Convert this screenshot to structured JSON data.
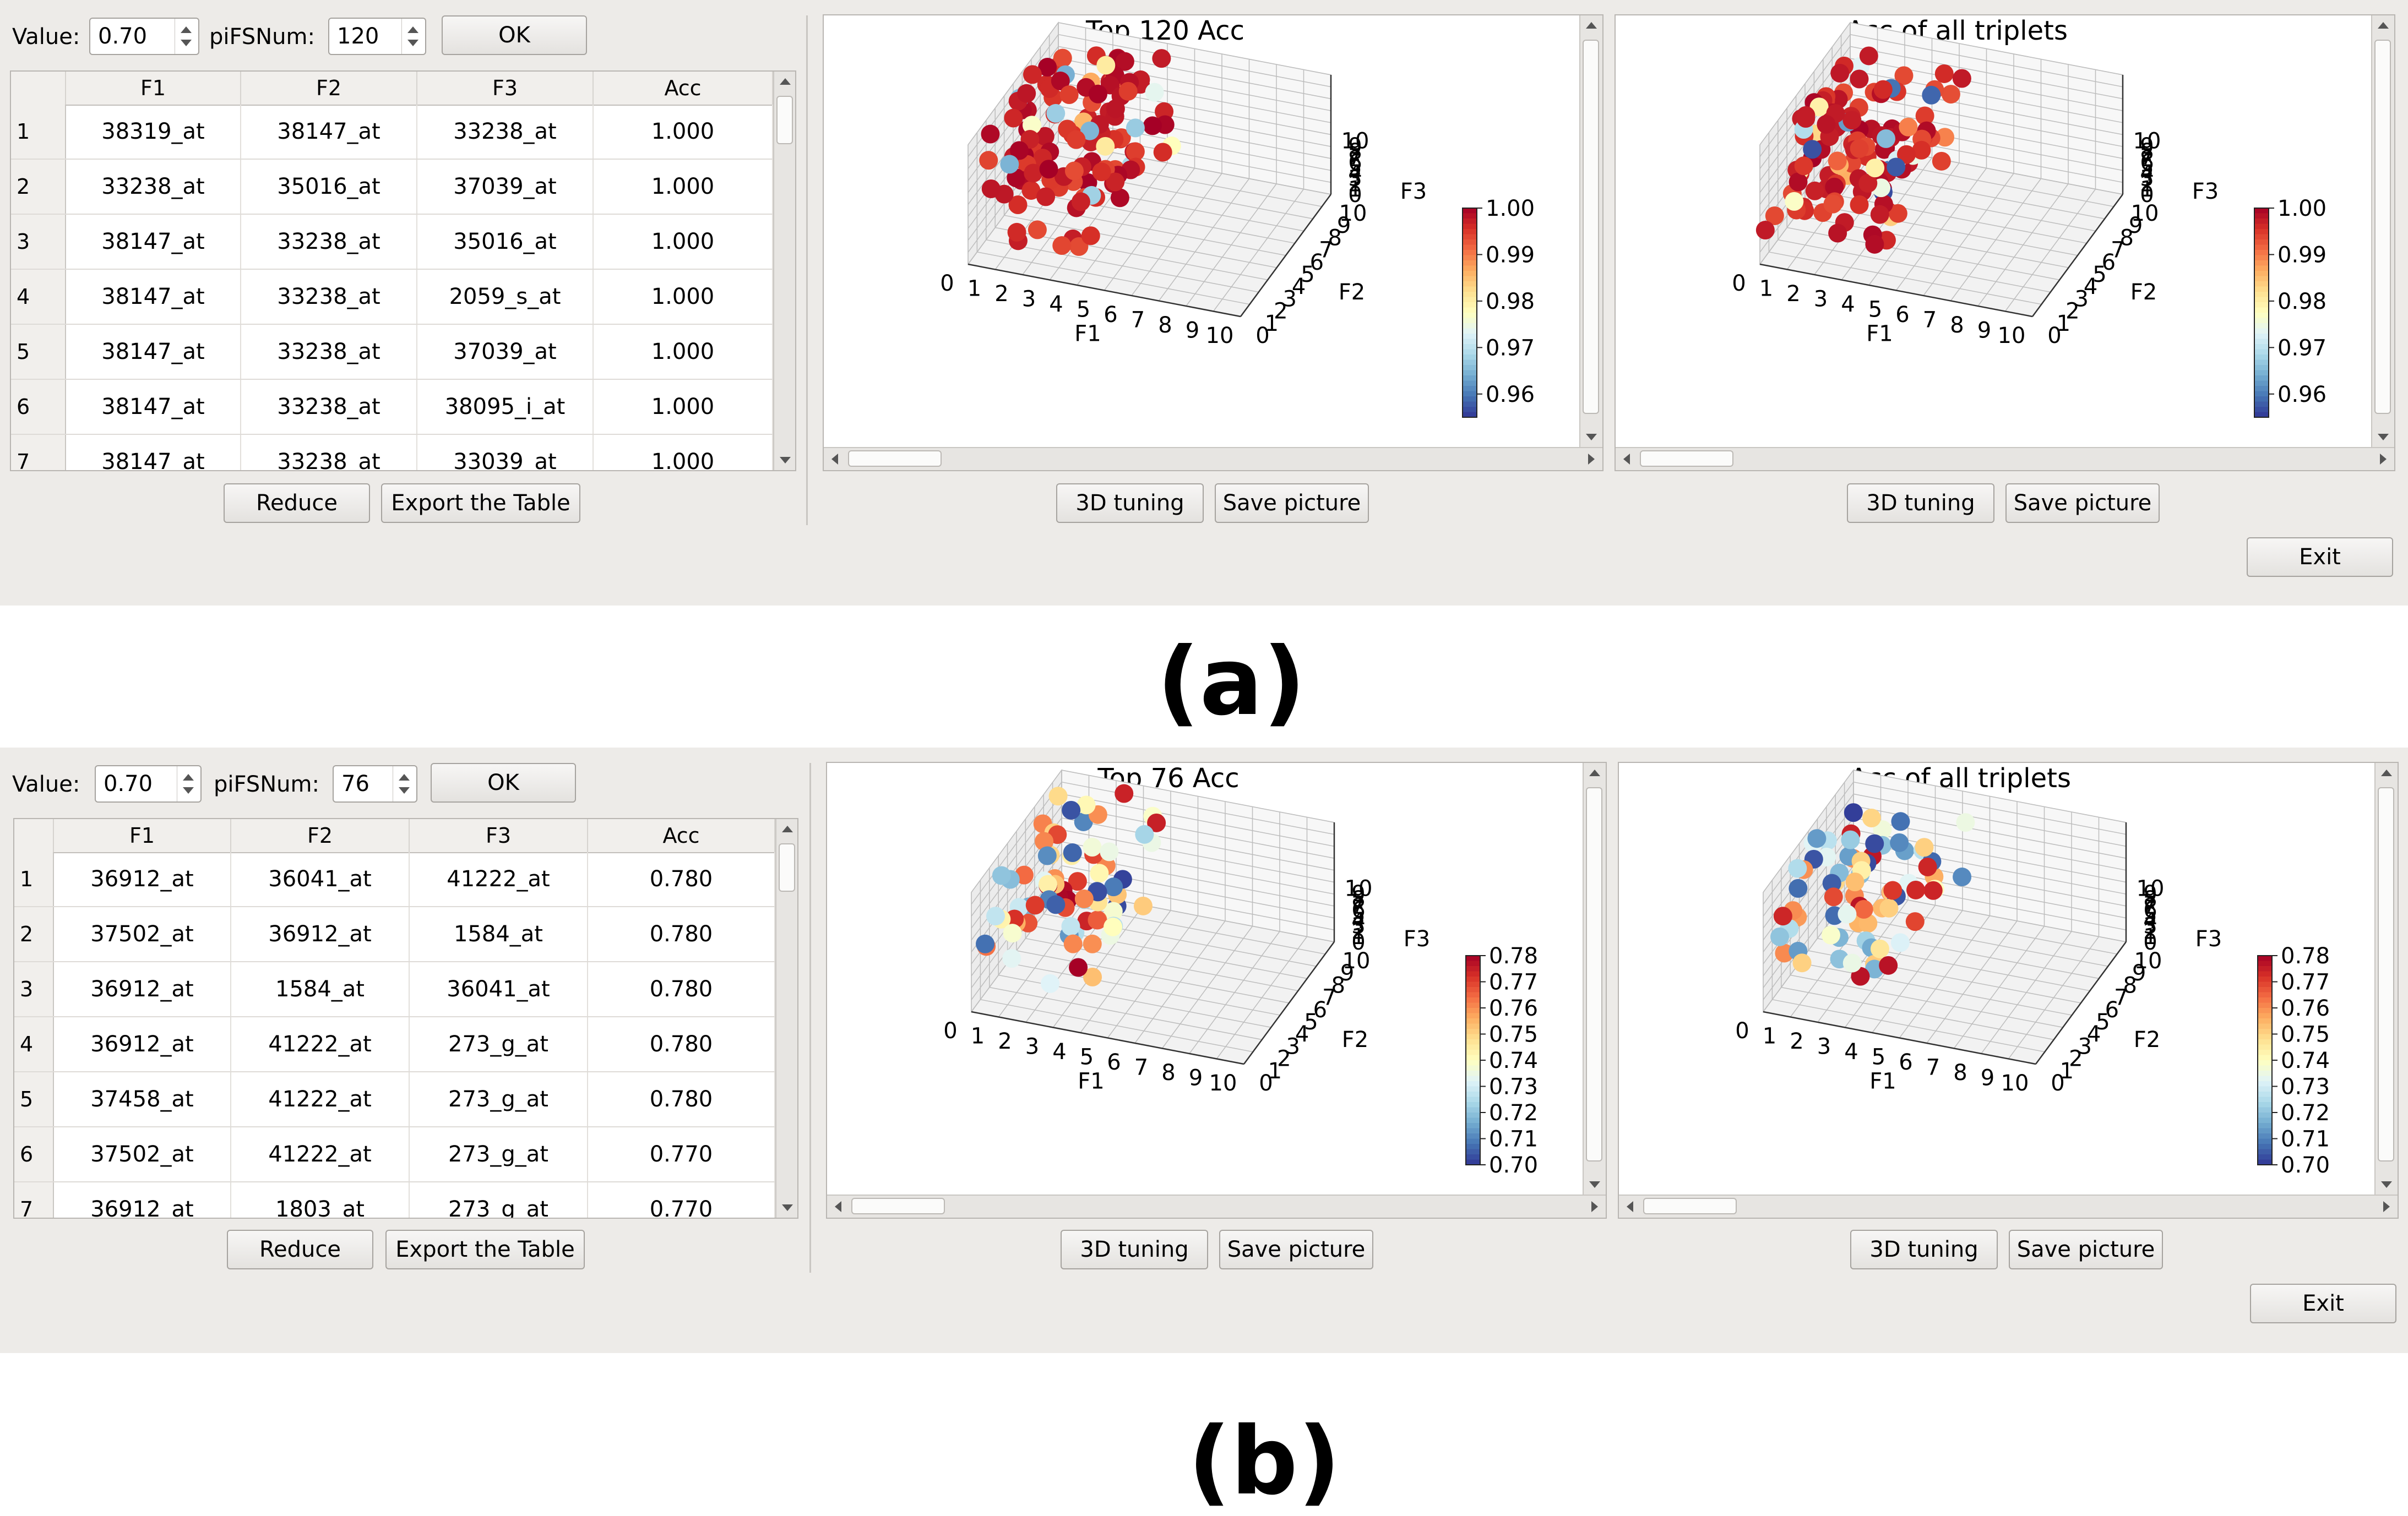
{
  "panels": [
    {
      "caption": "(a)",
      "controls": {
        "value_label": "Value:",
        "value": "0.70",
        "num_label": "piFSNum:",
        "num": "120",
        "ok_label": "OK"
      },
      "table": {
        "headers": [
          "F1",
          "F2",
          "F3",
          "Acc"
        ],
        "rows": [
          {
            "n": "1",
            "f1": "38319_at",
            "f2": "38147_at",
            "f3": "33238_at",
            "acc": "1.000"
          },
          {
            "n": "2",
            "f1": "33238_at",
            "f2": "35016_at",
            "f3": "37039_at",
            "acc": "1.000"
          },
          {
            "n": "3",
            "f1": "38147_at",
            "f2": "33238_at",
            "f3": "35016_at",
            "acc": "1.000"
          },
          {
            "n": "4",
            "f1": "38147_at",
            "f2": "33238_at",
            "f3": "2059_s_at",
            "acc": "1.000"
          },
          {
            "n": "5",
            "f1": "38147_at",
            "f2": "33238_at",
            "f3": "37039_at",
            "acc": "1.000"
          },
          {
            "n": "6",
            "f1": "38147_at",
            "f2": "33238_at",
            "f3": "38095_i_at",
            "acc": "1.000"
          },
          {
            "n": "7",
            "f1": "38147_at",
            "f2": "33238_at",
            "f3": "33039_at",
            "acc": "1.000"
          }
        ]
      },
      "reduce_label": "Reduce",
      "export_label": "Export the Table",
      "tuning_label": "3D tuning",
      "save_label": "Save picture",
      "exit_label": "Exit"
    },
    {
      "caption": "(b)",
      "controls": {
        "value_label": "Value:",
        "value": "0.70",
        "num_label": "piFSNum:",
        "num": "76",
        "ok_label": "OK"
      },
      "table": {
        "headers": [
          "F1",
          "F2",
          "F3",
          "Acc"
        ],
        "rows": [
          {
            "n": "1",
            "f1": "36912_at",
            "f2": "36041_at",
            "f3": "41222_at",
            "acc": "0.780"
          },
          {
            "n": "2",
            "f1": "37502_at",
            "f2": "36912_at",
            "f3": "1584_at",
            "acc": "0.780"
          },
          {
            "n": "3",
            "f1": "36912_at",
            "f2": "1584_at",
            "f3": "36041_at",
            "acc": "0.780"
          },
          {
            "n": "4",
            "f1": "36912_at",
            "f2": "41222_at",
            "f3": "273_g_at",
            "acc": "0.780"
          },
          {
            "n": "5",
            "f1": "37458_at",
            "f2": "41222_at",
            "f3": "273_g_at",
            "acc": "0.780"
          },
          {
            "n": "6",
            "f1": "37502_at",
            "f2": "41222_at",
            "f3": "273_g_at",
            "acc": "0.770"
          },
          {
            "n": "7",
            "f1": "36912_at",
            "f2": "1803_at",
            "f3": "273_g_at",
            "acc": "0.770"
          }
        ]
      },
      "reduce_label": "Reduce",
      "export_label": "Export the Table",
      "tuning_label": "3D tuning",
      "save_label": "Save picture",
      "exit_label": "Exit"
    }
  ],
  "chart_data": [
    {
      "type": "scatter",
      "projection": "3d",
      "title": "Top 120 Acc",
      "xlabel": "F1",
      "ylabel": "F2",
      "zlabel": "F3",
      "xlim": [
        0,
        10
      ],
      "ylim": [
        0,
        10
      ],
      "zlim": [
        0,
        10
      ],
      "x_ticks": [
        "0",
        "1",
        "2",
        "3",
        "4",
        "5",
        "6",
        "7",
        "8",
        "9",
        "10"
      ],
      "y_ticks": [
        "0",
        "1",
        "2",
        "3",
        "4",
        "5",
        "6",
        "7",
        "8",
        "9",
        "10"
      ],
      "z_ticks": [
        "0",
        "1",
        "2",
        "3",
        "4",
        "5",
        "6",
        "7",
        "8",
        "9",
        "10"
      ],
      "colorbar": {
        "min": 0.955,
        "max": 1.0,
        "ticks": [
          "1.00",
          "0.99",
          "0.98",
          "0.97",
          "0.96"
        ],
        "colormap": "RdYlBu"
      },
      "seed": 11,
      "n_points": 120,
      "value_range": [
        0.955,
        1.0
      ],
      "high_bias": 0.8,
      "cluster": {
        "x_range": [
          0,
          4.5
        ],
        "y_range": [
          0,
          9.5
        ],
        "z_range": [
          2,
          10
        ]
      }
    },
    {
      "type": "scatter",
      "projection": "3d",
      "title": "Acc of all triplets",
      "xlabel": "F1",
      "ylabel": "F2",
      "zlabel": "F3",
      "xlim": [
        0,
        10
      ],
      "ylim": [
        0,
        10
      ],
      "zlim": [
        0,
        10
      ],
      "x_ticks": [
        "0",
        "1",
        "2",
        "3",
        "4",
        "5",
        "6",
        "7",
        "8",
        "9",
        "10"
      ],
      "y_ticks": [
        "0",
        "1",
        "2",
        "3",
        "4",
        "5",
        "6",
        "7",
        "8",
        "9",
        "10"
      ],
      "z_ticks": [
        "0",
        "1",
        "2",
        "3",
        "4",
        "5",
        "6",
        "7",
        "8",
        "9",
        "10"
      ],
      "colorbar": {
        "min": 0.955,
        "max": 1.0,
        "ticks": [
          "1.00",
          "0.99",
          "0.98",
          "0.97",
          "0.96"
        ],
        "colormap": "RdYlBu"
      },
      "seed": 23,
      "n_points": 120,
      "value_range": [
        0.955,
        1.0
      ],
      "high_bias": 0.8,
      "cluster": {
        "x_range": [
          0,
          4.5
        ],
        "y_range": [
          0,
          9.5
        ],
        "z_range": [
          2,
          10
        ]
      }
    },
    {
      "type": "scatter",
      "projection": "3d",
      "title": "Top 76 Acc",
      "xlabel": "F1",
      "ylabel": "F2",
      "zlabel": "F3",
      "xlim": [
        0,
        10
      ],
      "ylim": [
        0,
        10
      ],
      "zlim": [
        0,
        10
      ],
      "x_ticks": [
        "0",
        "1",
        "2",
        "3",
        "4",
        "5",
        "6",
        "7",
        "8",
        "9",
        "10"
      ],
      "y_ticks": [
        "0",
        "1",
        "2",
        "3",
        "4",
        "5",
        "6",
        "7",
        "8",
        "9",
        "10"
      ],
      "z_ticks": [
        "0",
        "1",
        "2",
        "3",
        "4",
        "5",
        "6",
        "7",
        "8",
        "9",
        "10"
      ],
      "colorbar": {
        "min": 0.7,
        "max": 0.78,
        "ticks": [
          "0.78",
          "0.77",
          "0.76",
          "0.75",
          "0.74",
          "0.73",
          "0.72",
          "0.71",
          "0.70"
        ],
        "colormap": "RdYlBu"
      },
      "seed": 37,
      "n_points": 76,
      "value_range": [
        0.7,
        0.78
      ],
      "high_bias": 0.0,
      "cluster": {
        "x_range": [
          0,
          4.5
        ],
        "y_range": [
          0,
          9.5
        ],
        "z_range": [
          3,
          10
        ]
      }
    },
    {
      "type": "scatter",
      "projection": "3d",
      "title": "Acc of all triplets",
      "xlabel": "F1",
      "ylabel": "F2",
      "zlabel": "F3",
      "xlim": [
        0,
        10
      ],
      "ylim": [
        0,
        10
      ],
      "zlim": [
        0,
        10
      ],
      "x_ticks": [
        "0",
        "1",
        "2",
        "3",
        "4",
        "5",
        "6",
        "7",
        "8",
        "9",
        "10"
      ],
      "y_ticks": [
        "0",
        "1",
        "2",
        "3",
        "4",
        "5",
        "6",
        "7",
        "8",
        "9",
        "10"
      ],
      "z_ticks": [
        "0",
        "1",
        "2",
        "3",
        "4",
        "5",
        "6",
        "7",
        "8",
        "9",
        "10"
      ],
      "colorbar": {
        "min": 0.7,
        "max": 0.78,
        "ticks": [
          "0.78",
          "0.77",
          "0.76",
          "0.75",
          "0.74",
          "0.73",
          "0.72",
          "0.71",
          "0.70"
        ],
        "colormap": "RdYlBu"
      },
      "seed": 53,
      "n_points": 76,
      "value_range": [
        0.7,
        0.78
      ],
      "high_bias": 0.0,
      "cluster": {
        "x_range": [
          0,
          4.5
        ],
        "y_range": [
          0,
          9.5
        ],
        "z_range": [
          3,
          10
        ]
      }
    }
  ]
}
